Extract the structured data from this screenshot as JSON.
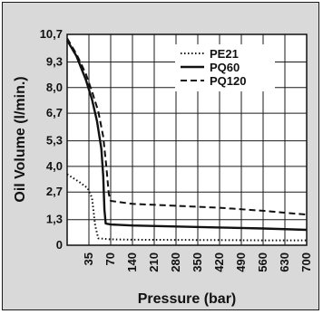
{
  "chart_data": {
    "type": "line",
    "title": "",
    "xlabel": "Pressure (bar)",
    "ylabel": "Oil Volume (l/min.)",
    "x_ticks": [
      35,
      70,
      140,
      210,
      280,
      350,
      420,
      490,
      560,
      630,
      700
    ],
    "x_tick_labels": [
      "35",
      "70",
      "140",
      "210",
      "280",
      "350",
      "420",
      "490",
      "560",
      "630",
      "700"
    ],
    "y_ticks": [
      0,
      1.3,
      2.7,
      4.0,
      5.3,
      6.7,
      8.0,
      9.3,
      10.7
    ],
    "y_tick_labels": [
      "0",
      "1,3",
      "2,7",
      "4,0",
      "5,3",
      "6,7",
      "8,0",
      "9,3",
      "10,7"
    ],
    "ylim": [
      0,
      10.7
    ],
    "x_scale": "non-uniform (35-bar steps up to 70, then 70-bar steps)",
    "grid": true,
    "legend_position": "top-right",
    "series": [
      {
        "name": "PE21",
        "style": "dotted",
        "points": [
          [
            0,
            3.6
          ],
          [
            20,
            3.2
          ],
          [
            33,
            2.9
          ],
          [
            40,
            2.4
          ],
          [
            45,
            1.0
          ],
          [
            50,
            0.35
          ],
          [
            70,
            0.3
          ],
          [
            140,
            0.28
          ],
          [
            280,
            0.27
          ],
          [
            420,
            0.26
          ],
          [
            560,
            0.25
          ],
          [
            700,
            0.25
          ]
        ]
      },
      {
        "name": "PQ60",
        "style": "solid",
        "points": [
          [
            0,
            10.4
          ],
          [
            15,
            9.6
          ],
          [
            30,
            8.4
          ],
          [
            40,
            7.4
          ],
          [
            48,
            6.3
          ],
          [
            55,
            4.9
          ],
          [
            58,
            3.5
          ],
          [
            60,
            1.8
          ],
          [
            62,
            1.1
          ],
          [
            70,
            1.05
          ],
          [
            140,
            1.0
          ],
          [
            280,
            0.95
          ],
          [
            420,
            0.9
          ],
          [
            560,
            0.85
          ],
          [
            700,
            0.78
          ]
        ]
      },
      {
        "name": "PQ120",
        "style": "dashed",
        "points": [
          [
            0,
            10.5
          ],
          [
            15,
            9.7
          ],
          [
            30,
            8.7
          ],
          [
            40,
            7.8
          ],
          [
            50,
            6.8
          ],
          [
            58,
            5.5
          ],
          [
            63,
            4.0
          ],
          [
            67,
            2.6
          ],
          [
            70,
            2.25
          ],
          [
            140,
            2.1
          ],
          [
            280,
            2.0
          ],
          [
            420,
            1.9
          ],
          [
            560,
            1.75
          ],
          [
            700,
            1.55
          ]
        ]
      }
    ],
    "colors": {
      "line": "#111111",
      "grid": "#1a1a1a",
      "plot_bg": "#ffffff",
      "frame_bg": "#d9d9d9"
    }
  }
}
